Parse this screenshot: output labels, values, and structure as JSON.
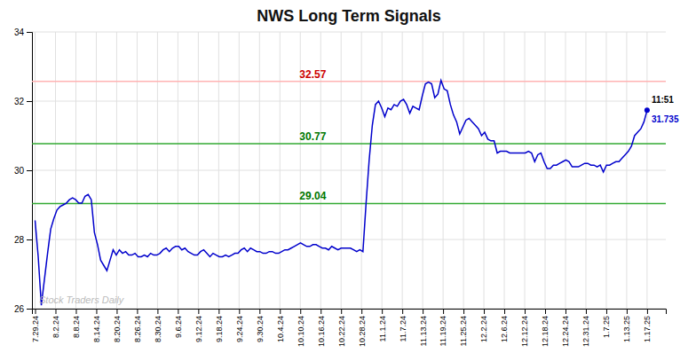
{
  "chart_data": {
    "type": "line",
    "title": "NWS Long Term Signals",
    "color": "#0000cc",
    "grid": true,
    "xlim": [
      -1,
      202
    ],
    "xticks": [
      {
        "value": 0,
        "label": "7.29.24"
      },
      {
        "value": 6.533333333333333,
        "label": "8.2.24"
      },
      {
        "value": 13.066666666666666,
        "label": "8.8.24"
      },
      {
        "value": 19.6,
        "label": "8.14.24"
      },
      {
        "value": 26.133333333333333,
        "label": "8.20.24"
      },
      {
        "value": 32.666666666666664,
        "label": "8.26.24"
      },
      {
        "value": 39.2,
        "label": "8.30.24"
      },
      {
        "value": 45.733333333333334,
        "label": "9.6.24"
      },
      {
        "value": 52.266666666666666,
        "label": "9.12.24"
      },
      {
        "value": 58.8,
        "label": "9.18.24"
      },
      {
        "value": 65.33333333333333,
        "label": "9.24.24"
      },
      {
        "value": 71.86666666666666,
        "label": "9.30.24"
      },
      {
        "value": 78.4,
        "label": "10.4.24"
      },
      {
        "value": 84.93333333333334,
        "label": "10.10.24"
      },
      {
        "value": 91.46666666666667,
        "label": "10.16.24"
      },
      {
        "value": 98,
        "label": "10.22.24"
      },
      {
        "value": 104.53333333333333,
        "label": "10.28.24"
      },
      {
        "value": 111.06666666666666,
        "label": "11.1.24"
      },
      {
        "value": 117.6,
        "label": "11.7.24"
      },
      {
        "value": 124.13333333333334,
        "label": "11.13.24"
      },
      {
        "value": 130.66666666666666,
        "label": "11.19.24"
      },
      {
        "value": 137.2,
        "label": "11.25.24"
      },
      {
        "value": 143.73333333333332,
        "label": "12.2.24"
      },
      {
        "value": 150.26666666666668,
        "label": "12.6.24"
      },
      {
        "value": 156.8,
        "label": "12.12.24"
      },
      {
        "value": 163.33333333333334,
        "label": "12.18.24"
      },
      {
        "value": 169.86666666666667,
        "label": "12.24.24"
      },
      {
        "value": 176.4,
        "label": "12.31.24"
      },
      {
        "value": 182.93333333333334,
        "label": "1.7.25"
      },
      {
        "value": 189.46666666666667,
        "label": "1.13.25"
      },
      {
        "value": 196,
        "label": "1.17.25"
      }
    ],
    "ylim": [
      26,
      34
    ],
    "yticks": [
      26,
      28,
      30,
      32,
      34
    ],
    "x": [
      0,
      1,
      2,
      3,
      4,
      5,
      6,
      7,
      8,
      9,
      10,
      11,
      12,
      13,
      14,
      15,
      16,
      17,
      18,
      19,
      20,
      21,
      22,
      23,
      24,
      25,
      26,
      27,
      28,
      29,
      30,
      31,
      32,
      33,
      34,
      35,
      36,
      37,
      38,
      39,
      40,
      41,
      42,
      43,
      44,
      45,
      46,
      47,
      48,
      49,
      50,
      51,
      52,
      53,
      54,
      55,
      56,
      57,
      58,
      59,
      60,
      61,
      62,
      63,
      64,
      65,
      66,
      67,
      68,
      69,
      70,
      71,
      72,
      73,
      74,
      75,
      76,
      77,
      78,
      79,
      80,
      81,
      82,
      83,
      84,
      85,
      86,
      87,
      88,
      89,
      90,
      91,
      92,
      93,
      94,
      95,
      96,
      97,
      98,
      99,
      100,
      101,
      102,
      103,
      104,
      105,
      106,
      107,
      108,
      109,
      110,
      111,
      112,
      113,
      114,
      115,
      116,
      117,
      118,
      119,
      120,
      121,
      122,
      123,
      124,
      125,
      126,
      127,
      128,
      129,
      130,
      131,
      132,
      133,
      134,
      135,
      136,
      137,
      138,
      139,
      140,
      141,
      142,
      143,
      144,
      145,
      146,
      147,
      148,
      149,
      150,
      151,
      152,
      153,
      154,
      155,
      156,
      157,
      158,
      159,
      160,
      161,
      162,
      163,
      164,
      165,
      166,
      167,
      168,
      169,
      170,
      171,
      172,
      173,
      174,
      175,
      176,
      177,
      178,
      179,
      180,
      181,
      182,
      183,
      184,
      185,
      186,
      187,
      188,
      189,
      190,
      191,
      192,
      193,
      194,
      195,
      196
    ],
    "values": [
      28.55,
      27.5,
      26.1,
      26.85,
      27.6,
      28.3,
      28.6,
      28.85,
      28.95,
      29.0,
      29.05,
      29.15,
      29.2,
      29.15,
      29.05,
      29.05,
      29.25,
      29.3,
      29.15,
      28.2,
      27.85,
      27.4,
      27.25,
      27.1,
      27.4,
      27.7,
      27.55,
      27.7,
      27.6,
      27.65,
      27.55,
      27.55,
      27.6,
      27.5,
      27.5,
      27.55,
      27.5,
      27.6,
      27.55,
      27.55,
      27.6,
      27.7,
      27.75,
      27.65,
      27.75,
      27.8,
      27.8,
      27.7,
      27.75,
      27.65,
      27.6,
      27.55,
      27.55,
      27.65,
      27.7,
      27.6,
      27.5,
      27.6,
      27.55,
      27.5,
      27.5,
      27.55,
      27.5,
      27.55,
      27.6,
      27.6,
      27.7,
      27.75,
      27.65,
      27.75,
      27.7,
      27.65,
      27.65,
      27.6,
      27.6,
      27.65,
      27.65,
      27.6,
      27.6,
      27.65,
      27.7,
      27.7,
      27.75,
      27.8,
      27.85,
      27.9,
      27.85,
      27.8,
      27.8,
      27.85,
      27.85,
      27.8,
      27.75,
      27.75,
      27.7,
      27.8,
      27.75,
      27.7,
      27.75,
      27.75,
      27.75,
      27.75,
      27.7,
      27.65,
      27.7,
      27.65,
      29.04,
      30.3,
      31.3,
      31.9,
      32.0,
      31.8,
      31.55,
      31.8,
      31.75,
      31.9,
      31.85,
      32.0,
      32.05,
      31.9,
      31.65,
      31.85,
      31.8,
      31.75,
      32.15,
      32.5,
      32.55,
      32.5,
      32.1,
      32.2,
      32.6,
      32.35,
      32.3,
      31.9,
      31.6,
      31.4,
      31.05,
      31.25,
      31.45,
      31.5,
      31.4,
      31.3,
      31.2,
      31.0,
      31.1,
      30.9,
      30.85,
      30.85,
      30.5,
      30.55,
      30.55,
      30.55,
      30.5,
      30.5,
      30.5,
      30.5,
      30.5,
      30.5,
      30.55,
      30.5,
      30.25,
      30.45,
      30.5,
      30.25,
      30.05,
      30.05,
      30.15,
      30.15,
      30.2,
      30.25,
      30.3,
      30.25,
      30.1,
      30.1,
      30.1,
      30.15,
      30.2,
      30.2,
      30.15,
      30.15,
      30.1,
      30.15,
      29.95,
      30.15,
      30.15,
      30.2,
      30.25,
      30.25,
      30.35,
      30.45,
      30.55,
      30.7,
      31.0,
      31.1,
      31.2,
      31.4,
      31.735
    ],
    "reference_lines": [
      {
        "value": 32.57,
        "label": "32.57",
        "color": "#ffb3b3",
        "label_color": "#cc0000"
      },
      {
        "value": 30.77,
        "label": "30.77",
        "color": "#33aa33",
        "label_color": "#007700"
      },
      {
        "value": 29.04,
        "label": "29.04",
        "color": "#33aa33",
        "label_color": "#007700"
      }
    ],
    "point_annotations": [
      {
        "text": "11:51",
        "color": "#000000"
      },
      {
        "text": "31.735",
        "color": "#0000cc"
      }
    ],
    "watermark": "Stock Traders Daily",
    "watermark_color": "#bbbbbb"
  }
}
